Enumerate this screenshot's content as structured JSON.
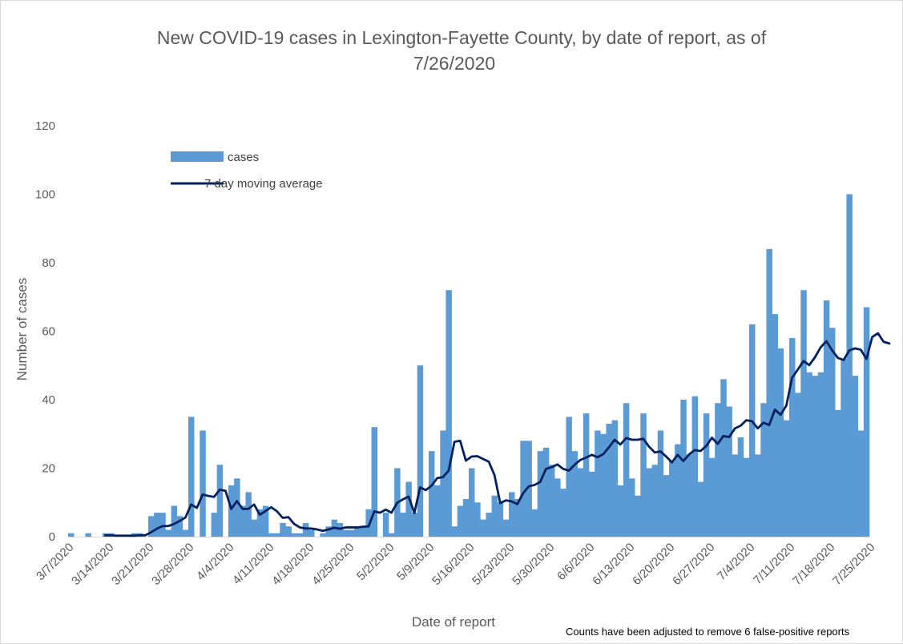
{
  "chart_data": {
    "type": "bar",
    "title": "New COVID-19 cases in Lexington-Fayette County, by date of report, as of 7/26/2020",
    "title_lines": [
      "New COVID-19 cases in Lexington-Fayette County, by date of report, as of",
      "7/26/2020"
    ],
    "xlabel": "Date of report",
    "ylabel": "Number of cases",
    "footnote": "Counts have been adjusted to remove 6 false-positive reports",
    "ylim": [
      0,
      120
    ],
    "yticks": [
      0,
      20,
      40,
      60,
      80,
      100,
      120
    ],
    "grid": false,
    "legend_position": "top-left",
    "x_start": "3/7/2020",
    "x_end": "7/26/2020",
    "xtick_labels": [
      "3/7/2020",
      "3/14/2020",
      "3/21/2020",
      "3/28/2020",
      "4/4/2020",
      "4/11/2020",
      "4/18/2020",
      "4/25/2020",
      "5/2/2020",
      "5/9/2020",
      "5/16/2020",
      "5/23/2020",
      "5/30/2020",
      "6/6/2020",
      "6/13/2020",
      "6/20/2020",
      "6/27/2020",
      "7/4/2020",
      "7/11/2020",
      "7/18/2020",
      "7/25/2020"
    ],
    "series": [
      {
        "name": "cases",
        "kind": "bar",
        "color": "#5b9bd5",
        "values": [
          1,
          0,
          0,
          1,
          0,
          0,
          1,
          1,
          0,
          0,
          0,
          1,
          1,
          0,
          6,
          7,
          7,
          2,
          9,
          6,
          2,
          35,
          0,
          31,
          0,
          7,
          21,
          0,
          15,
          17,
          9,
          13,
          5,
          8,
          9,
          1,
          1,
          4,
          3,
          1,
          1,
          4,
          2,
          0,
          1,
          3,
          5,
          4,
          2,
          2,
          3,
          3,
          8,
          32,
          0,
          7,
          1,
          20,
          7,
          16,
          7,
          50,
          0,
          25,
          15,
          31,
          72,
          3,
          9,
          11,
          20,
          10,
          5,
          7,
          12,
          10,
          5,
          13,
          11,
          28,
          28,
          8,
          25,
          26,
          21,
          17,
          14,
          35,
          25,
          20,
          36,
          19,
          31,
          30,
          33,
          34,
          15,
          39,
          17,
          12,
          36,
          20,
          21,
          31,
          18,
          22,
          27,
          40,
          24,
          41,
          16,
          36,
          23,
          39,
          46,
          38,
          24,
          29,
          23,
          62,
          24,
          39,
          84,
          65,
          55,
          34,
          58,
          42,
          72,
          48,
          47,
          48,
          69,
          61,
          37,
          52,
          100,
          47,
          31,
          67
        ]
      },
      {
        "name": "7 day moving average",
        "kind": "line",
        "color": "#002060",
        "values": [
          null,
          null,
          null,
          null,
          null,
          null,
          0.4,
          0.4,
          0.3,
          0.3,
          0.3,
          0.3,
          0.4,
          0.4,
          1.3,
          2.3,
          3.1,
          3.1,
          3.7,
          4.6,
          5.6,
          9.4,
          8.4,
          12.3,
          11.9,
          11.6,
          13.7,
          13.4,
          8.1,
          10.4,
          8.1,
          8.1,
          9.4,
          6.4,
          7.5,
          8.6,
          7.4,
          5.5,
          5.7,
          3.7,
          2.7,
          2.4,
          2.4,
          2.1,
          1.7,
          2.1,
          2.6,
          2.3,
          2.7,
          2.7,
          2.7,
          2.9,
          3.0,
          7.4,
          7.0,
          7.9,
          7.0,
          9.9,
          10.9,
          11.7,
          6.9,
          14.4,
          13.6,
          14.9,
          17.1,
          17.4,
          19.3,
          27.7,
          28.0,
          22.2,
          23.4,
          23.5,
          22.7,
          21.9,
          18.0,
          9.8,
          10.6,
          10.3,
          9.5,
          12.7,
          14.7,
          15.1,
          16.0,
          19.8,
          20.3,
          21.1,
          19.8,
          19.3,
          21.0,
          22.4,
          23.1,
          23.9,
          23.2,
          24.1,
          26.1,
          28.3,
          26.9,
          28.8,
          28.3,
          28.3,
          28.6,
          26.3,
          24.6,
          24.9,
          23.4,
          21.7,
          23.9,
          22.1,
          24.0,
          25.3,
          25.0,
          26.5,
          28.9,
          27.1,
          29.4,
          29.1,
          31.6,
          32.4,
          34.0,
          33.7,
          31.6,
          33.3,
          32.6,
          37.1,
          35.6,
          38.3,
          46.4,
          48.8,
          51.3,
          50.1,
          52.4,
          55.3,
          57.1,
          54.4,
          52.2,
          51.6,
          54.4,
          55.0,
          54.6,
          51.9,
          58.3,
          59.4,
          56.9,
          56.4
        ]
      }
    ]
  }
}
